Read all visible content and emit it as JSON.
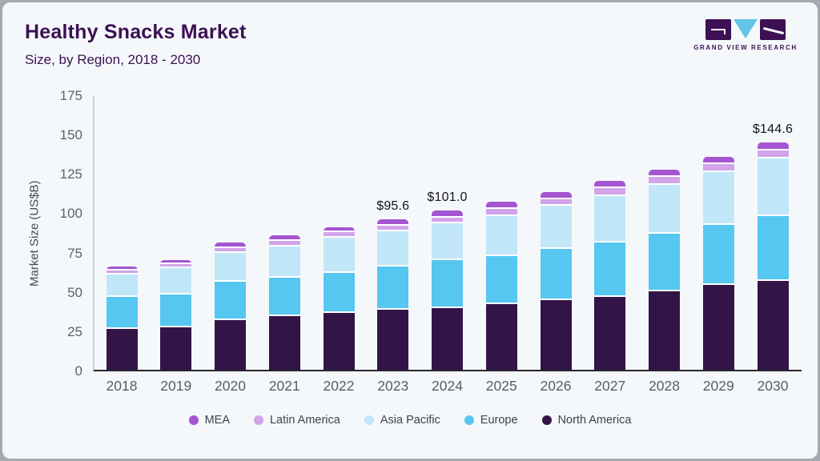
{
  "header": {
    "title": "Healthy Snacks Market",
    "subtitle": "Size, by Region, 2018 - 2030"
  },
  "logo": {
    "brand": "GRAND VIEW RESEARCH"
  },
  "chart_data": {
    "type": "bar",
    "stacked": true,
    "title": "Healthy Snacks Market Size, by Region, 2018 - 2030",
    "ylabel": "Market Size (US$B)",
    "ylim": [
      0,
      175
    ],
    "yticks": [
      0,
      25,
      50,
      75,
      100,
      125,
      150,
      175
    ],
    "grid": false,
    "legend_position": "bottom",
    "categories": [
      "2018",
      "2019",
      "2020",
      "2021",
      "2022",
      "2023",
      "2024",
      "2025",
      "2026",
      "2027",
      "2028",
      "2029",
      "2030"
    ],
    "series": [
      {
        "name": "North America",
        "color": "#321447",
        "values": [
          26.2,
          26.9,
          31.7,
          33.9,
          35.9,
          38.1,
          39.3,
          41.9,
          44.3,
          46.1,
          49.8,
          53.7,
          56.3
        ]
      },
      {
        "name": "Europe",
        "color": "#56c7f0",
        "values": [
          19.9,
          20.7,
          24.1,
          24.4,
          25.5,
          27.6,
          30.2,
          30.5,
          32.4,
          34.8,
          36.5,
          38.3,
          41.6
        ]
      },
      {
        "name": "Asia Pacific",
        "color": "#c1e6f8",
        "values": [
          14.5,
          17.2,
          18.3,
          20.1,
          22.6,
          22.2,
          23.5,
          25.5,
          27.5,
          29.7,
          31.1,
          33.9,
          36.2
        ]
      },
      {
        "name": "Latin America",
        "color": "#d1a4ea",
        "values": [
          2.6,
          2.5,
          3.4,
          3.4,
          3.5,
          3.9,
          3.6,
          4.2,
          4.2,
          5.1,
          5.1,
          4.7,
          5.1
        ]
      },
      {
        "name": "MEA",
        "color": "#a455d1",
        "values": [
          2.6,
          2.6,
          3.4,
          3.7,
          3.3,
          3.8,
          4.4,
          4.6,
          4.3,
          4.6,
          4.7,
          4.6,
          5.4
        ]
      }
    ],
    "annotations": [
      {
        "category": "2023",
        "label": "$95.6"
      },
      {
        "category": "2024",
        "label": "$101.0"
      },
      {
        "category": "2030",
        "label": "$144.6"
      }
    ],
    "legend": [
      {
        "label": "MEA",
        "color": "#a455d1"
      },
      {
        "label": "Latin America",
        "color": "#d1a4ea"
      },
      {
        "label": "Asia Pacific",
        "color": "#c1e6f8"
      },
      {
        "label": "Europe",
        "color": "#56c7f0"
      },
      {
        "label": "North America",
        "color": "#321447"
      }
    ]
  }
}
